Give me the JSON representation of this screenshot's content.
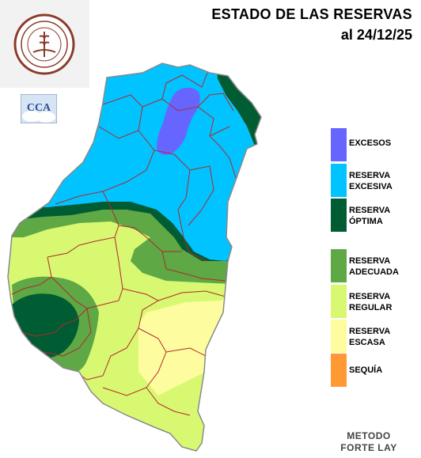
{
  "title": {
    "line1": "ESTADO DE LAS RESERVAS",
    "line2": "al 24/12/25"
  },
  "logo": {
    "name": "bolsa-de-cereales-entre-rios-seal",
    "text": "BOLSA DE CEREALES DE ENTRE RIOS",
    "year": "1979"
  },
  "badge": {
    "name": "cca-logo",
    "text": "CCA"
  },
  "legend": {
    "items": [
      {
        "line1": "EXCESOS",
        "line2": "",
        "color": "#6666ff"
      },
      {
        "line1": "RESERVA",
        "line2": "EXCESIVA",
        "color": "#00c3ff"
      },
      {
        "line1": "RESERVA",
        "line2": "ÓPTIMA",
        "color": "#005c33"
      },
      {
        "line1": "RESERVA",
        "line2": "ADECUADA",
        "color": "#5ea846"
      },
      {
        "line1": "RESERVA",
        "line2": "REGULAR",
        "color": "#d8f871"
      },
      {
        "line1": "RESERVA",
        "line2": "ESCASA",
        "color": "#fdfd9f"
      },
      {
        "line1": "SEQUÍA",
        "line2": "",
        "color": "#ff9933"
      }
    ]
  },
  "method": {
    "line1": "METODO",
    "line2": "FORTE LAY"
  },
  "colors": {
    "border": "#b3282d",
    "outline": "#8a8a8a"
  }
}
